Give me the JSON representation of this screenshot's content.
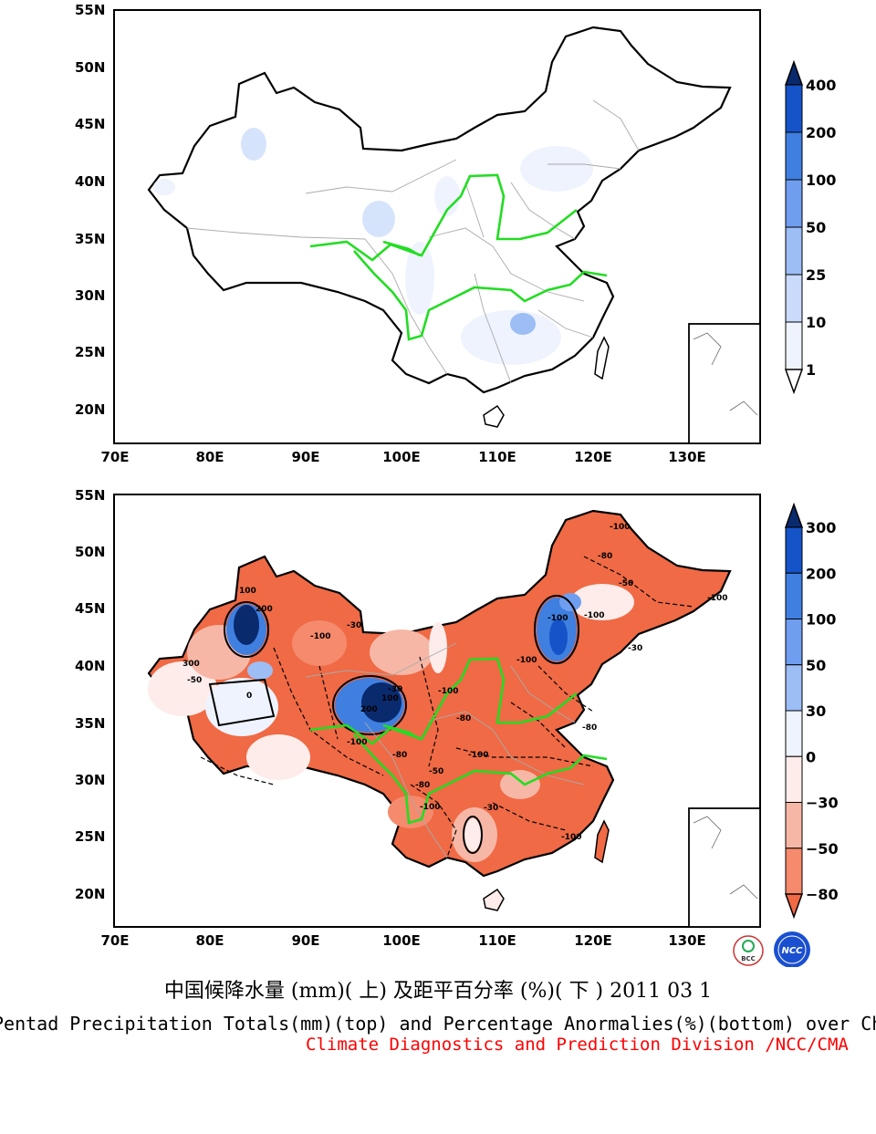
{
  "top_map": {
    "lat_labels": [
      "55N",
      "50N",
      "45N",
      "40N",
      "35N",
      "30N",
      "25N",
      "20N"
    ],
    "lon_labels": [
      "70E",
      "80E",
      "90E",
      "100E",
      "110E",
      "120E",
      "130E"
    ],
    "colorbar": {
      "labels": [
        "400",
        "200",
        "100",
        "50",
        "25",
        "10",
        "1"
      ],
      "colors": [
        "#0a2a6e",
        "#1553c8",
        "#3f7fe0",
        "#6f9ef0",
        "#9dbdf5",
        "#c9dafa",
        "#eef3fd",
        "#ffffff"
      ]
    }
  },
  "bottom_map": {
    "lat_labels": [
      "55N",
      "50N",
      "45N",
      "40N",
      "35N",
      "30N",
      "25N",
      "20N"
    ],
    "lon_labels": [
      "70E",
      "80E",
      "90E",
      "100E",
      "110E",
      "120E",
      "130E"
    ],
    "colorbar": {
      "labels": [
        "300",
        "200",
        "100",
        "50",
        "30",
        "0",
        "−30",
        "−50",
        "−80"
      ],
      "colors": [
        "#0a2a6e",
        "#1553c8",
        "#3f7fe0",
        "#6f9ef0",
        "#9dbdf5",
        "#eef3fd",
        "#fdecea",
        "#f7b7a6",
        "#f58a6c",
        "#ef6a45"
      ]
    },
    "contour_labels": [
      "-100",
      "-80",
      "-50",
      "-30",
      "100",
      "200",
      "300",
      "0",
      "-100",
      "-80",
      "-100",
      "-100",
      "-30",
      "-100",
      "-50",
      "-80",
      "100",
      "200",
      "-100",
      "-80",
      "-100",
      "-50",
      "-30",
      "-100",
      "-80",
      "-100",
      "-100",
      "-30",
      "-100"
    ]
  },
  "logos": {
    "left_text": "BCC",
    "right_text": "NCC"
  },
  "title_cn": "中国候降水量 (mm)( 上) 及距平百分率 (%)( 下 ) 2011 03 1",
  "title_en": "Pentad Precipitation Totals(mm)(top) and Percentage Anormalies(%)(bottom) over China",
  "credit": "Climate Diagnostics and Prediction Division /NCC/CMA",
  "colors": {
    "river": "#22dd22",
    "border": "#000000",
    "province": "#aaaaaa",
    "credit": "#ff0000"
  }
}
